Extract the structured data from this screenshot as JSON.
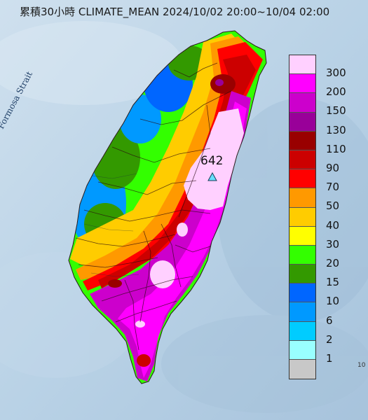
{
  "title": "累積30小時 CLIMATE_MEAN 2024/10/02 20:00~10/04 02:00",
  "strait_label": "Formosa Strait",
  "max_value_label": "642",
  "legend": {
    "items": [
      {
        "label": "300",
        "color": "#ffd0ff"
      },
      {
        "label": "200",
        "color": "#ff00ff"
      },
      {
        "label": "150",
        "color": "#cc00cc"
      },
      {
        "label": "130",
        "color": "#990099"
      },
      {
        "label": "110",
        "color": "#990000"
      },
      {
        "label": "90",
        "color": "#cc0000"
      },
      {
        "label": "70",
        "color": "#ff0000"
      },
      {
        "label": "50",
        "color": "#ff9900"
      },
      {
        "label": "40",
        "color": "#ffcc00"
      },
      {
        "label": "30",
        "color": "#ffff00"
      },
      {
        "label": "20",
        "color": "#33ff00"
      },
      {
        "label": "15",
        "color": "#339900"
      },
      {
        "label": "10",
        "color": "#0066ff"
      },
      {
        "label": "6",
        "color": "#0099ff"
      },
      {
        "label": "2",
        "color": "#00ccff"
      },
      {
        "label": "1",
        "color": "#99ffff"
      },
      {
        "label": "",
        "color": "#c8c8c8"
      }
    ]
  },
  "corner_mark": "10"
}
